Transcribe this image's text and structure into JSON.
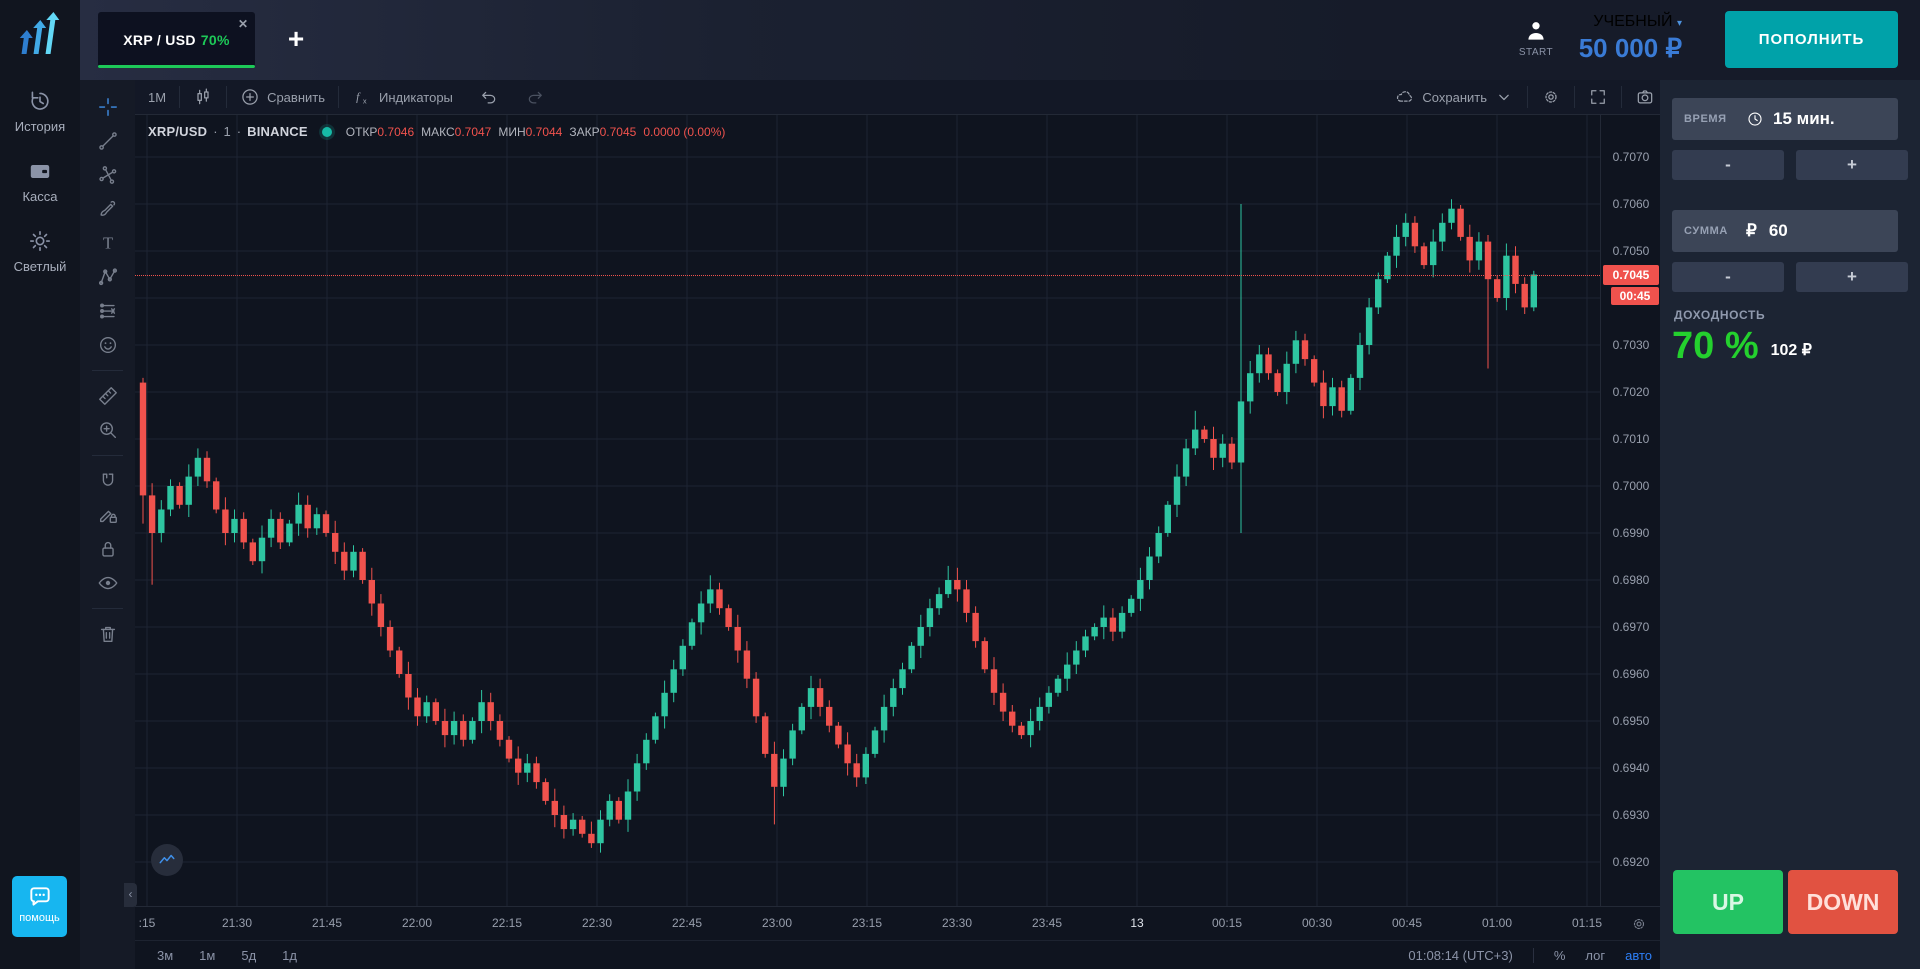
{
  "tab": {
    "symbol": "XRP / USD",
    "payout": "70%",
    "close": "✕",
    "add": "+"
  },
  "topbar": {
    "start_label": "START",
    "account_type": "УЧЕБНЫЙ",
    "account_chevron": "▾",
    "balance": "50 000 ₽",
    "deposit_label": "ПОПОЛНИТЬ"
  },
  "sidebar": {
    "items": [
      {
        "id": "history",
        "icon": "history-icon",
        "label": "История"
      },
      {
        "id": "cashier",
        "icon": "wallet-icon",
        "label": "Касса"
      },
      {
        "id": "theme",
        "icon": "sun-icon",
        "label": "Светлый"
      }
    ],
    "help_label": "помощь"
  },
  "drawing_toolbar": {
    "tools": [
      {
        "id": "crosshair",
        "icon": "crosshair-icon",
        "active": true
      },
      {
        "id": "trend-line",
        "icon": "trend-line-icon",
        "active": false
      },
      {
        "id": "cross-line",
        "icon": "cross-line-icon",
        "active": false
      },
      {
        "id": "brush",
        "icon": "brush-icon",
        "active": false
      },
      {
        "id": "text",
        "icon": "text-icon",
        "active": false
      },
      {
        "id": "xabcd-pattern",
        "icon": "xabcd-icon",
        "active": false
      },
      {
        "id": "position-tool",
        "icon": "position-icon",
        "active": false
      },
      {
        "id": "emoji",
        "icon": "smiley-icon",
        "active": false
      },
      {
        "sep": true
      },
      {
        "id": "measure",
        "icon": "ruler-icon",
        "active": false
      },
      {
        "id": "zoom-in",
        "icon": "zoom-in-icon",
        "active": false
      },
      {
        "sep": true
      },
      {
        "id": "magnet",
        "icon": "magnet-icon",
        "active": false
      },
      {
        "id": "drawing-mode",
        "icon": "pencil-lock-icon",
        "active": false
      },
      {
        "id": "lock-drawings",
        "icon": "lock-icon",
        "active": false
      },
      {
        "id": "hide-drawings",
        "icon": "eye-icon",
        "active": false
      },
      {
        "sep": true
      },
      {
        "id": "remove-drawings",
        "icon": "trash-icon",
        "active": false
      }
    ]
  },
  "chart_toolbar": {
    "interval": "1М",
    "compare": "Сравнить",
    "indicators": "Индикаторы",
    "save": "Сохранить"
  },
  "legend": {
    "symbol": "XRP/USD",
    "interval": "1",
    "exchange": "BINANCE",
    "open_label": "ОТКР",
    "open": "0.7046",
    "high_label": "МАКС",
    "high": "0.7047",
    "low_label": "МИН",
    "low": "0.7044",
    "close_label": "ЗАКР",
    "close": "0.7045",
    "change": "0.0000 (0.00%)"
  },
  "trade_panel": {
    "time_label": "ВРЕМЯ",
    "time_value": "15 мин.",
    "amount_label": "СУММА",
    "currency": "₽",
    "amount_value": "60",
    "minus": "-",
    "plus": "+",
    "payout_label": "ДОХОДНОСТЬ",
    "payout_percent": "70 %",
    "payout_amount": "102 ₽",
    "up_label": "UP",
    "down_label": "DOWN"
  },
  "bottom": {
    "ranges": [
      "3м",
      "1м",
      "5д",
      "1д"
    ],
    "clock": "01:08:14 (UTC+3)",
    "percent": "%",
    "log": "лог",
    "auto": "авто"
  },
  "colors": {
    "up_candle": "#2ec5a1",
    "down_candle": "#f0524d",
    "grid": "#1d2433",
    "accent_green": "#1dc958",
    "accent_red": "#f0524d",
    "accent_blue": "#3a7bd5",
    "deposit_teal": "#00a2a9",
    "help_blue": "#17b6f0"
  },
  "chart_data": {
    "type": "candlestick",
    "title": "XRP/USD · 1 · BINANCE",
    "x_labels": [
      ":15",
      "21:30",
      "21:45",
      "22:00",
      "22:15",
      "22:30",
      "22:45",
      "23:00",
      "23:15",
      "23:30",
      "23:45",
      "13",
      "00:15",
      "00:30",
      "00:45",
      "01:00",
      "01:15"
    ],
    "x_highlight": "13",
    "y_axis": {
      "min": 0.692,
      "max": 0.707,
      "step": 0.001
    },
    "current_price": 0.7045,
    "countdown": "00:45",
    "first_open": 0.7022,
    "closes": [
      0.6998,
      0.699,
      0.6995,
      0.7,
      0.6996,
      0.7002,
      0.7006,
      0.7001,
      0.6995,
      0.699,
      0.6993,
      0.6988,
      0.6984,
      0.6989,
      0.6993,
      0.6988,
      0.6992,
      0.6996,
      0.6991,
      0.6994,
      0.699,
      0.6986,
      0.6982,
      0.6986,
      0.698,
      0.6975,
      0.697,
      0.6965,
      0.696,
      0.6955,
      0.6951,
      0.6954,
      0.695,
      0.6947,
      0.695,
      0.6946,
      0.695,
      0.6954,
      0.695,
      0.6946,
      0.6942,
      0.6939,
      0.6941,
      0.6937,
      0.6933,
      0.693,
      0.6927,
      0.6929,
      0.6926,
      0.6924,
      0.6929,
      0.6933,
      0.6929,
      0.6935,
      0.6941,
      0.6946,
      0.6951,
      0.6956,
      0.6961,
      0.6966,
      0.6971,
      0.6975,
      0.6978,
      0.6974,
      0.697,
      0.6965,
      0.6959,
      0.6951,
      0.6943,
      0.6936,
      0.6942,
      0.6948,
      0.6953,
      0.6957,
      0.6953,
      0.6949,
      0.6945,
      0.6941,
      0.6938,
      0.6943,
      0.6948,
      0.6953,
      0.6957,
      0.6961,
      0.6966,
      0.697,
      0.6974,
      0.6977,
      0.698,
      0.6978,
      0.6973,
      0.6967,
      0.6961,
      0.6956,
      0.6952,
      0.6949,
      0.6947,
      0.695,
      0.6953,
      0.6956,
      0.6959,
      0.6962,
      0.6965,
      0.6968,
      0.697,
      0.6972,
      0.6969,
      0.6973,
      0.6976,
      0.698,
      0.6985,
      0.699,
      0.6996,
      0.7002,
      0.7008,
      0.7012,
      0.701,
      0.7006,
      0.7009,
      0.7005,
      0.7018,
      0.7024,
      0.7028,
      0.7024,
      0.702,
      0.7026,
      0.7031,
      0.7027,
      0.7022,
      0.7017,
      0.7021,
      0.7016,
      0.7023,
      0.703,
      0.7038,
      0.7044,
      0.7049,
      0.7053,
      0.7056,
      0.7051,
      0.7047,
      0.7052,
      0.7056,
      0.7059,
      0.7053,
      0.7048,
      0.7052,
      0.7044,
      0.704,
      0.7049,
      0.7043,
      0.7038,
      0.7045
    ],
    "wick_overrides": {
      "0": {
        "h": 0.7023,
        "l": 0.6992
      },
      "1": {
        "l": 0.6979
      },
      "6": {
        "h": 0.7008
      },
      "49": {
        "l": 0.6923
      },
      "62": {
        "h": 0.6981
      },
      "69": {
        "l": 0.6928
      },
      "88": {
        "h": 0.6983
      },
      "115": {
        "h": 0.7016
      },
      "120": {
        "h": 0.706,
        "l": 0.699
      },
      "143": {
        "h": 0.7061
      },
      "147": {
        "l": 0.7025
      }
    }
  }
}
